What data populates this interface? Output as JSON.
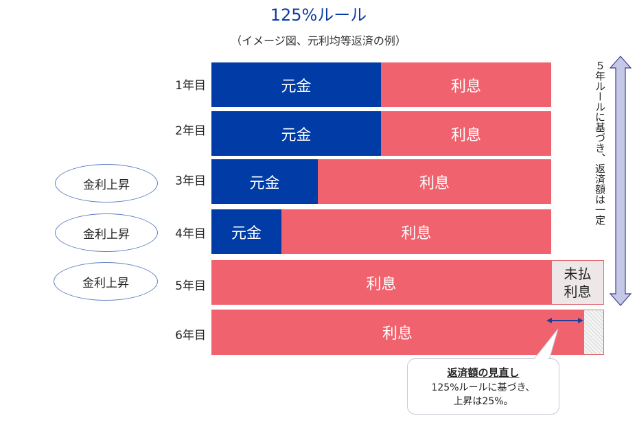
{
  "title": "125%ルール",
  "subtitle": "（イメージ図、元利均等返済の例）",
  "rows": [
    {
      "year": "1年目",
      "principal_label": "元金",
      "interest_label": "利息"
    },
    {
      "year": "2年目",
      "principal_label": "元金",
      "interest_label": "利息"
    },
    {
      "year": "3年目",
      "principal_label": "元金",
      "interest_label": "利息",
      "note": "金利上昇"
    },
    {
      "year": "4年目",
      "principal_label": "元金",
      "interest_label": "利息",
      "note": "金利上昇"
    },
    {
      "year": "5年目",
      "interest_label": "利息",
      "unpaid_label_1": "未払",
      "unpaid_label_2": "利息",
      "note": "金利上昇"
    },
    {
      "year": "6年目",
      "interest_label": "利息"
    }
  ],
  "side_label": "５年ルールに基づき、返済額は一定",
  "callout": {
    "title": "返済額の見直し",
    "line1": "125%ルールに基づき、",
    "line2": "上昇は25%。"
  },
  "colors": {
    "principal": "#003BA6",
    "interest": "#F0636E",
    "title": "#0B3CA5",
    "arrow_fill": "#C5C8E6",
    "arrow_stroke": "#3A3F8F"
  }
}
